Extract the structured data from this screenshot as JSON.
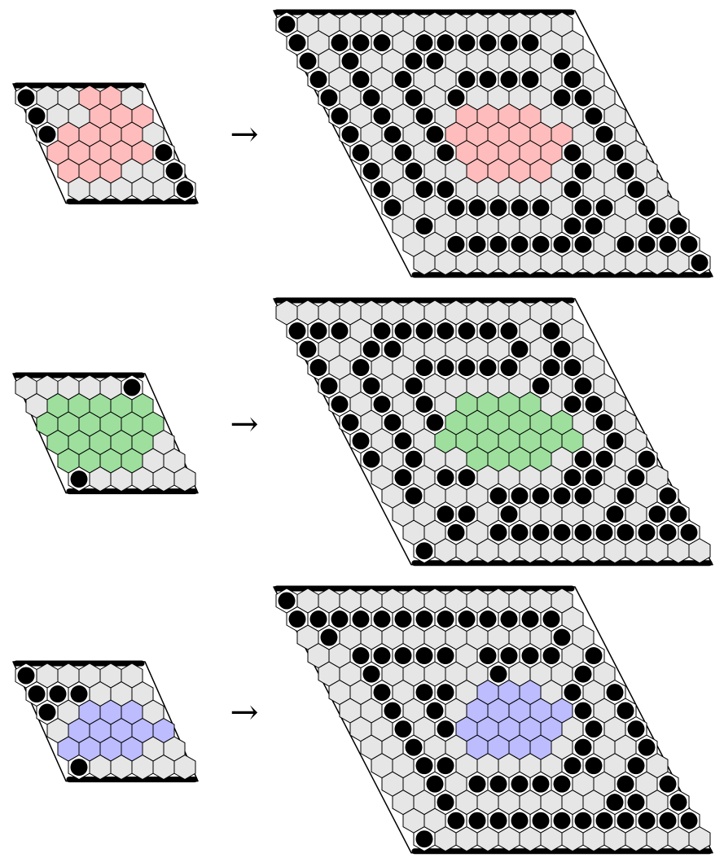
{
  "arrows": [
    "→",
    "→",
    "→"
  ]
}
